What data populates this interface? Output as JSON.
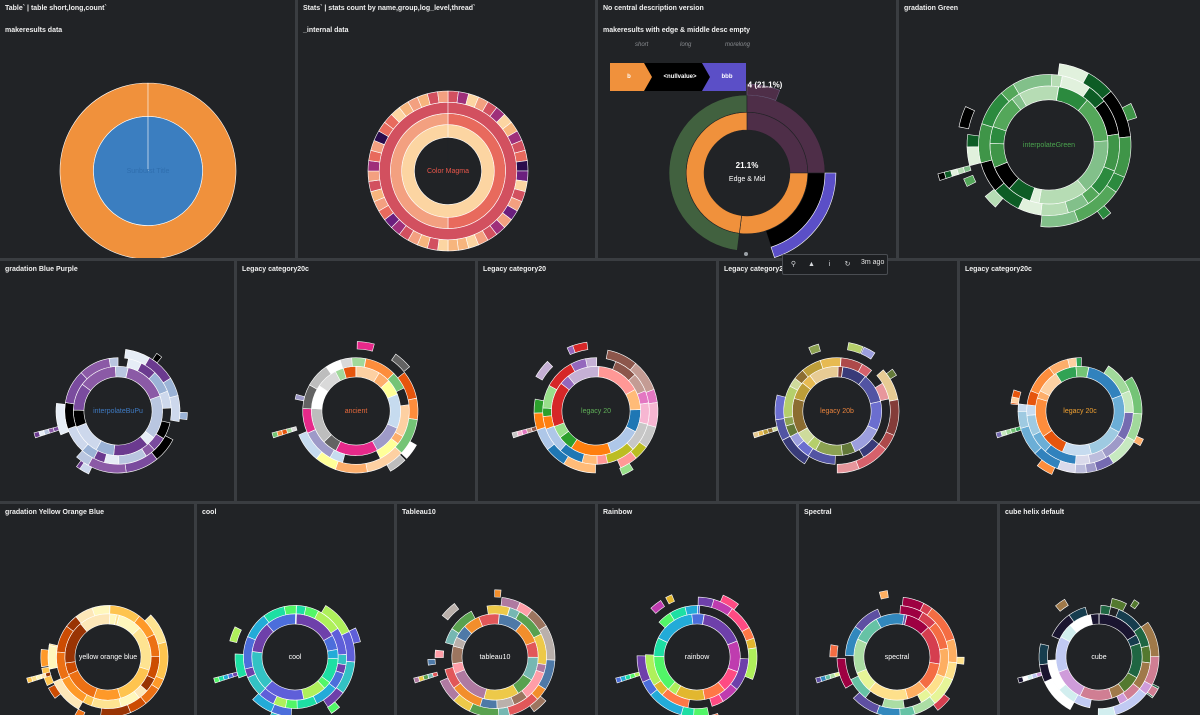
{
  "panels": [
    {
      "title": "Table` | table short,long,count`",
      "subtitle": "makeresults data",
      "center": "Sunburst Title",
      "center_color": "#3b82c4",
      "palette": [
        "#3b7ec0",
        "#f0913c"
      ],
      "kind": "simple"
    },
    {
      "title": "Stats` | stats count by name,group,log_level,thread`",
      "subtitle": "_internal data",
      "center": "Color Magma",
      "center_color": "#e8564a",
      "palette": [
        "#fcd5a2",
        "#f3a080",
        "#e86a5d",
        "#d2505f",
        "#9e2f7a",
        "#6b1f7e",
        "#2a0c4c",
        "#f7b57d"
      ],
      "kind": "magma"
    },
    {
      "title": "No central description version",
      "subtitle": "makeresults with edge & middle desc empty",
      "center": "21.1%",
      "center2": "Edge & Mid",
      "center_color": "#ffffff",
      "palette": [
        "#f0913c",
        "#41613f",
        "#4e2e48",
        "#5b4fc7",
        "#000000"
      ],
      "kind": "edge",
      "hover_label": "4 (21.1%)"
    },
    {
      "title": "gradation Green",
      "subtitle": "",
      "center": "interpolateGreen",
      "center_color": "#4aa44e",
      "palette": [
        "#2b8a3e",
        "#54a75a",
        "#82c08a",
        "#b6dcb4",
        "#e1f1dd",
        "#0d5c25",
        "#000000",
        "#3f9548"
      ]
    },
    {
      "title": "gradation Blue Purple",
      "subtitle": "",
      "center": "interpolateBuPu",
      "center_color": "#3f7ac2",
      "palette": [
        "#8b5aa6",
        "#b9c6e0",
        "#e6edf6",
        "#6b3a8f",
        "#9bb3d6",
        "#cdd8ec",
        "#000000",
        "#7a4b9e"
      ]
    },
    {
      "title": "Legacy category20c",
      "subtitle": "",
      "center": "ancient",
      "center_color": "#e86a3c",
      "palette": [
        "#fdd0a2",
        "#fdae6b",
        "#ffff99",
        "#c6dbef",
        "#9e9ac8",
        "#e7298a",
        "#636363",
        "#bdbdbd",
        "#ffffff",
        "#d9d9d9",
        "#a1d99b",
        "#e6550d",
        "#fd8d3c",
        "#74c476"
      ]
    },
    {
      "title": "Legacy category20",
      "subtitle": "",
      "center": "legacy 20",
      "center_color": "#5fae57",
      "palette": [
        "#ff9896",
        "#ffbb78",
        "#1f77b4",
        "#aec7e8",
        "#ff7f0e",
        "#2ca02c",
        "#98df8a",
        "#d62728",
        "#9467bd",
        "#c5b0d5",
        "#8c564b",
        "#c49c94",
        "#e377c2",
        "#f7b6d2",
        "#c7c7c7",
        "#bcbd22"
      ]
    },
    {
      "title": "Legacy category20b",
      "subtitle": "",
      "center": "legacy 20b",
      "center_color": "#e8823c",
      "palette": [
        "#393b79",
        "#5254a3",
        "#6b6ecf",
        "#9c9ede",
        "#637939",
        "#8ca252",
        "#b5cf6b",
        "#cedb9c",
        "#8c6d31",
        "#bd9e39",
        "#e7ba52",
        "#e7cb94",
        "#843c39",
        "#ad494a",
        "#d6616b",
        "#e7969c"
      ]
    },
    {
      "title": "Legacy category20c",
      "subtitle": "",
      "center": "legacy 20c",
      "center_color": "#f0a030",
      "palette": [
        "#3182bd",
        "#6baed6",
        "#9ecae1",
        "#c6dbef",
        "#e6550d",
        "#fd8d3c",
        "#fdae6b",
        "#fdd0a2",
        "#31a354",
        "#74c476",
        "#a1d99b",
        "#c7e9c0",
        "#756bb1",
        "#9e9ac8",
        "#bcbddc",
        "#dadaeb"
      ]
    },
    {
      "title": "gradation Yellow Orange Blue",
      "subtitle": "",
      "center": "yellow orange blue",
      "center_color": "#ffffff",
      "palette": [
        "#fff7bc",
        "#fee391",
        "#fec44f",
        "#fe9929",
        "#ec7014",
        "#cc4c02",
        "#993404",
        "#fde7b8"
      ]
    },
    {
      "title": "cool",
      "subtitle": "",
      "center": "cool",
      "center_color": "#ffffff",
      "palette": [
        "#6e40aa",
        "#4c6edb",
        "#23abd8",
        "#1ddfa3",
        "#52f667",
        "#aff05b",
        "#5f5fd9",
        "#33c2c4"
      ]
    },
    {
      "title": "Tableau10",
      "subtitle": "",
      "center": "tableau10",
      "center_color": "#ffffff",
      "palette": [
        "#4e79a7",
        "#f28e2c",
        "#e15759",
        "#76b7b2",
        "#59a14f",
        "#edc949",
        "#af7aa1",
        "#ff9da7",
        "#9c755f",
        "#bab0ab"
      ]
    },
    {
      "title": "Rainbow",
      "subtitle": "",
      "center": "rainbow",
      "center_color": "#ffffff",
      "palette": [
        "#6e40aa",
        "#bf3caf",
        "#fe4b83",
        "#ff7847",
        "#e2b72f",
        "#aff05b",
        "#52f667",
        "#1ddfa3",
        "#23abd8",
        "#4c6edb"
      ]
    },
    {
      "title": "Spectral",
      "subtitle": "",
      "center": "spectral",
      "center_color": "#ffffff",
      "palette": [
        "#9e0142",
        "#d53e4f",
        "#f46d43",
        "#fdae61",
        "#fee08b",
        "#e6f598",
        "#abdda4",
        "#66c2a5",
        "#3288bd",
        "#5e4fa2"
      ]
    },
    {
      "title": "cube helix default",
      "subtitle": "",
      "center": "cube",
      "center_color": "#ffffff",
      "palette": [
        "#1a1530",
        "#163d4e",
        "#1f6642",
        "#54792f",
        "#a07949",
        "#d07e93",
        "#cf9cda",
        "#c1caf3",
        "#d2eeef",
        "#ffffff"
      ]
    }
  ],
  "breadcrumb": {
    "headers": [
      "short",
      "long",
      "morelong"
    ],
    "items": [
      "b",
      "<nullvalue>",
      "bbb"
    ],
    "colors": [
      "#f0913c",
      "#000000",
      "#5b4fc7"
    ]
  },
  "toolbar": {
    "time": "3m ago",
    "icons": [
      "search-icon",
      "export-icon",
      "inspect-icon",
      "refresh-icon"
    ]
  }
}
